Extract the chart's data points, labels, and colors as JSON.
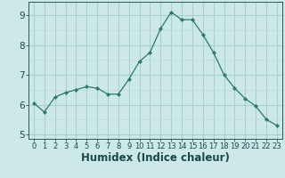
{
  "x": [
    0,
    1,
    2,
    3,
    4,
    5,
    6,
    7,
    8,
    9,
    10,
    11,
    12,
    13,
    14,
    15,
    16,
    17,
    18,
    19,
    20,
    21,
    22,
    23
  ],
  "y": [
    6.05,
    5.75,
    6.25,
    6.4,
    6.5,
    6.6,
    6.55,
    6.35,
    6.35,
    6.85,
    7.45,
    7.75,
    8.55,
    9.1,
    8.85,
    8.85,
    8.35,
    7.75,
    7.0,
    6.55,
    6.2,
    5.95,
    5.5,
    5.3
  ],
  "bg_color": "#cce8e8",
  "line_color": "#2a7a6a",
  "marker_color": "#2a7a6a",
  "grid_major_color": "#aacfcf",
  "grid_minor_color": "#bbdada",
  "xlabel": "Humidex (Indice chaleur)",
  "xlim": [
    -0.5,
    23.5
  ],
  "ylim": [
    4.85,
    9.45
  ],
  "yticks": [
    5,
    6,
    7,
    8,
    9
  ],
  "xticks": [
    0,
    1,
    2,
    3,
    4,
    5,
    6,
    7,
    8,
    9,
    10,
    11,
    12,
    13,
    14,
    15,
    16,
    17,
    18,
    19,
    20,
    21,
    22,
    23
  ],
  "tick_color": "#2a5858",
  "label_color": "#1a4848",
  "x_fontsize": 6.0,
  "y_fontsize": 7.5,
  "xlabel_fontsize": 8.5
}
